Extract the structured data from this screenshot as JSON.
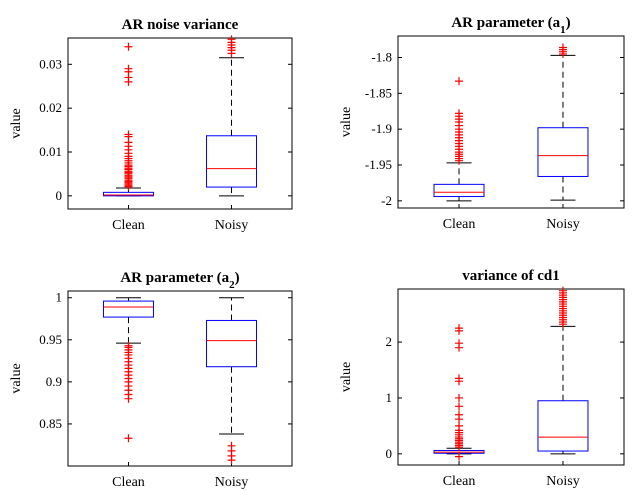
{
  "chart_data": [
    {
      "type": "boxplot",
      "title": "AR noise variance",
      "title_parts": [
        {
          "t": "AR noise variance"
        }
      ],
      "ylabel": "value",
      "categories": [
        "Clean",
        "Noisy"
      ],
      "ylim": [
        -0.003,
        0.036
      ],
      "yticks": [
        0,
        0.01,
        0.02,
        0.03
      ],
      "ytick_labels": [
        "0",
        "0.01",
        "0.02",
        "0.03"
      ],
      "boxes": [
        {
          "category": "Clean",
          "lower_whisker": 0,
          "q1": 0,
          "median": 0.0002,
          "q3": 0.0008,
          "upper_whisker": 0.0018,
          "outliers": [
            0.0021,
            0.0024,
            0.0027,
            0.003,
            0.0033,
            0.0036,
            0.004,
            0.0043,
            0.0046,
            0.005,
            0.0053,
            0.0056,
            0.006,
            0.0063,
            0.0067,
            0.007,
            0.0075,
            0.008,
            0.0085,
            0.009,
            0.0097,
            0.0105,
            0.0113,
            0.0122,
            0.0135,
            0.014,
            0.026,
            0.027,
            0.0283,
            0.029,
            0.034
          ]
        },
        {
          "category": "Noisy",
          "lower_whisker": 0,
          "q1": 0.002,
          "median": 0.0062,
          "q3": 0.0137,
          "upper_whisker": 0.0315,
          "outliers": [
            0.0325,
            0.0332,
            0.0338,
            0.0344,
            0.035,
            0.0357
          ]
        }
      ]
    },
    {
      "type": "boxplot",
      "title": "AR parameter (a1)",
      "title_parts": [
        {
          "t": "AR parameter (a"
        },
        {
          "t": "1",
          "sub": true
        },
        {
          "t": ")"
        }
      ],
      "ylabel": "value",
      "categories": [
        "Clean",
        "Noisy"
      ],
      "ylim": [
        -2.01,
        -1.77
      ],
      "yticks": [
        -2,
        -1.95,
        -1.9,
        -1.85,
        -1.8
      ],
      "ytick_labels": [
        "-2",
        "-1.95",
        "-1.9",
        "-1.85",
        "-1.8"
      ],
      "boxes": [
        {
          "category": "Clean",
          "lower_whisker": -2.0,
          "q1": -1.994,
          "median": -1.988,
          "q3": -1.977,
          "upper_whisker": -1.947,
          "outliers": [
            -1.944,
            -1.941,
            -1.938,
            -1.935,
            -1.932,
            -1.928,
            -1.924,
            -1.92,
            -1.916,
            -1.912,
            -1.908,
            -1.904,
            -1.9,
            -1.895,
            -1.89,
            -1.886,
            -1.882,
            -1.878,
            -1.833
          ]
        },
        {
          "category": "Noisy",
          "lower_whisker": -1.999,
          "q1": -1.966,
          "median": -1.937,
          "q3": -1.898,
          "upper_whisker": -1.797,
          "outliers": [
            -1.795,
            -1.792,
            -1.789,
            -1.786
          ]
        }
      ]
    },
    {
      "type": "boxplot",
      "title": "AR parameter (a2)",
      "title_parts": [
        {
          "t": "AR parameter (a"
        },
        {
          "t": "2",
          "sub": true
        },
        {
          "t": ")"
        }
      ],
      "ylabel": "value",
      "categories": [
        "Clean",
        "Noisy"
      ],
      "ylim": [
        0.8,
        1.008
      ],
      "yticks": [
        0.85,
        0.9,
        0.95,
        1
      ],
      "ytick_labels": [
        "0.85",
        "0.9",
        "0.95",
        "1"
      ],
      "boxes": [
        {
          "category": "Clean",
          "lower_whisker": 0.946,
          "q1": 0.977,
          "median": 0.989,
          "q3": 0.996,
          "upper_whisker": 1.0,
          "outliers": [
            0.943,
            0.941,
            0.938,
            0.935,
            0.932,
            0.928,
            0.924,
            0.92,
            0.916,
            0.912,
            0.908,
            0.904,
            0.9,
            0.895,
            0.89,
            0.885,
            0.88,
            0.833
          ]
        },
        {
          "category": "Noisy",
          "lower_whisker": 0.838,
          "q1": 0.918,
          "median": 0.949,
          "q3": 0.973,
          "upper_whisker": 1.0,
          "outliers": [
            0.824,
            0.818,
            0.812,
            0.807
          ]
        }
      ]
    },
    {
      "type": "boxplot",
      "title": "variance of cd1",
      "title_parts": [
        {
          "t": "variance of cd1"
        }
      ],
      "ylabel": "value",
      "categories": [
        "Clean",
        "Noisy"
      ],
      "ylim": [
        -0.2,
        2.95
      ],
      "yticks": [
        0,
        1,
        2
      ],
      "ytick_labels": [
        "0",
        "1",
        "2"
      ],
      "boxes": [
        {
          "category": "Clean",
          "lower_whisker": 0,
          "q1": 0.01,
          "median": 0.03,
          "q3": 0.06,
          "upper_whisker": 0.1,
          "outliers": [
            0.12,
            0.15,
            0.18,
            0.21,
            0.24,
            0.27,
            0.3,
            0.34,
            0.38,
            0.42,
            0.5,
            0.62,
            0.7,
            0.85,
            1.0,
            1.3,
            1.35,
            1.9,
            1.98,
            2.2,
            2.25,
            -0.05
          ]
        },
        {
          "category": "Noisy",
          "lower_whisker": 0,
          "q1": 0.05,
          "median": 0.3,
          "q3": 0.95,
          "upper_whisker": 2.28,
          "outliers": [
            2.32,
            2.36,
            2.4,
            2.44,
            2.48,
            2.52,
            2.56,
            2.6,
            2.64,
            2.68,
            2.72,
            2.76,
            2.8,
            2.84,
            2.88,
            2.92
          ]
        }
      ]
    }
  ],
  "colors": {
    "box": "#0000ff",
    "median": "#ff0000",
    "whisker": "#000000",
    "outlier": "#ff0000",
    "axis": "#000000"
  }
}
